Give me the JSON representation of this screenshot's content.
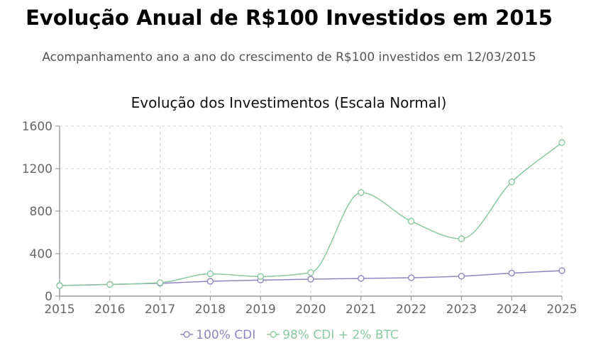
{
  "page": {
    "title": "Evolução Anual de R$100 Investidos em 2015",
    "subtitle": "Acompanhamento ano a ano do crescimento de R$100 investidos em 12/03/2015"
  },
  "chart_data": {
    "type": "line",
    "title": "Evolução dos Investimentos (Escala Normal)",
    "x": [
      "2015",
      "2016",
      "2017",
      "2018",
      "2019",
      "2020",
      "2021",
      "2022",
      "2023",
      "2024",
      "2025"
    ],
    "ylim": [
      0,
      1600
    ],
    "yticks": [
      0,
      400,
      800,
      1200,
      1600
    ],
    "grid": true,
    "legend_position": "bottom",
    "series": [
      {
        "name": "100% CDI",
        "color": "#8f86bf",
        "values": [
          100,
          111,
          121,
          140,
          151,
          160,
          167,
          173,
          188,
          217,
          240
        ]
      },
      {
        "name": "98% CDI + 2% BTC",
        "color": "#8ac9a1",
        "values": [
          100,
          110,
          127,
          210,
          185,
          222,
          975,
          705,
          540,
          1075,
          1445
        ]
      }
    ]
  }
}
